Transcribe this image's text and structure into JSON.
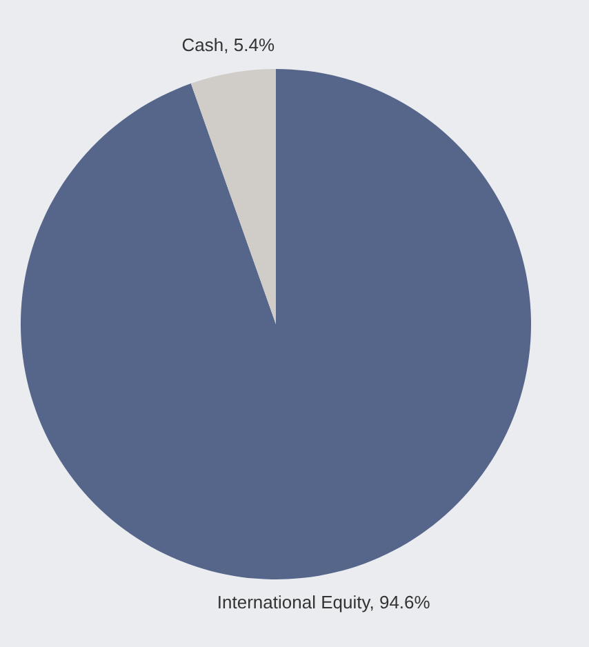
{
  "chart_data": {
    "type": "pie",
    "categories": [
      "International Equity",
      "Cash"
    ],
    "values": [
      94.6,
      5.4
    ],
    "colors": [
      "#56658a",
      "#d0cdc8"
    ],
    "value_labels": [
      "94.6%",
      "5.4%"
    ]
  }
}
